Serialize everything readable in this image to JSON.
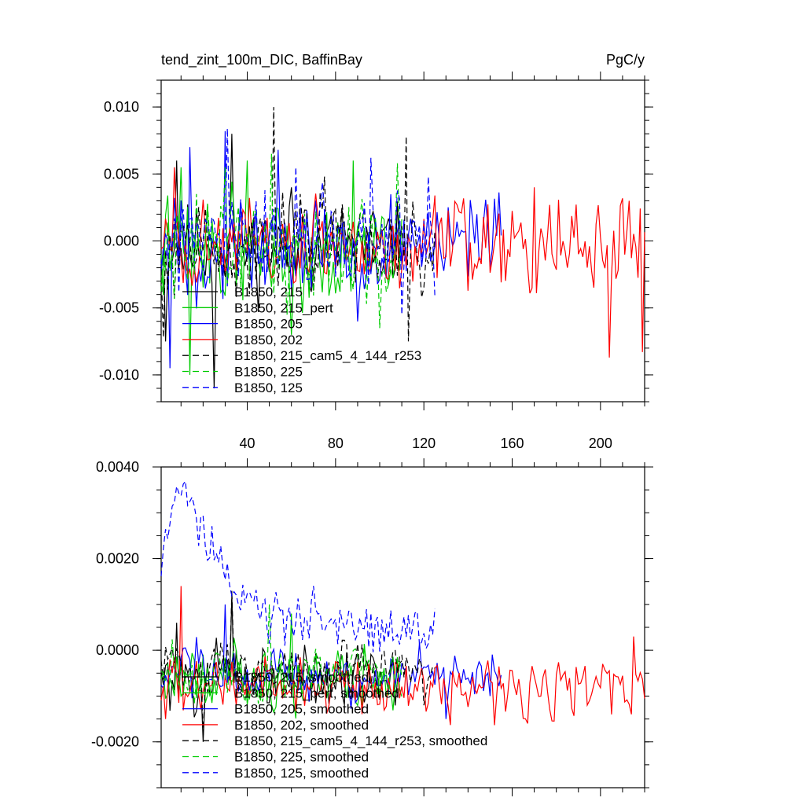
{
  "chart_data": [
    {
      "type": "line",
      "title": "tend_zint_100m_DIC, BaffinBay",
      "units": "PgC/y",
      "xlim": [
        1,
        220
      ],
      "ylim": [
        -0.012,
        0.012
      ],
      "xticks": [
        40,
        80,
        120,
        160,
        200
      ],
      "xtick_labels": [
        "40",
        "80",
        "120",
        "160",
        "200"
      ],
      "yticks": [
        0.01,
        0.005,
        0.0,
        -0.005,
        -0.01
      ],
      "ytick_labels": [
        "0.010",
        "0.005",
        "0.000",
        "-0.005",
        "-0.010"
      ],
      "legend_position": "bottom-left",
      "series": [
        {
          "name": "B1850, 215",
          "color": "#000000",
          "dash": "solid",
          "n": 110,
          "spread": 0.0022,
          "bias": -0.0005,
          "seed": 11,
          "spikes": [
            [
              3,
              -0.0075
            ],
            [
              8,
              0.006
            ],
            [
              25,
              -0.011
            ],
            [
              33,
              0.008
            ],
            [
              60,
              0.004
            ]
          ]
        },
        {
          "name": "B1850, 215_pert",
          "color": "#00cc00",
          "dash": "solid",
          "n": 110,
          "spread": 0.0025,
          "bias": -0.0006,
          "seed": 22,
          "spikes": [
            [
              10,
              0.0055
            ],
            [
              14,
              -0.01
            ],
            [
              40,
              0.006
            ],
            [
              60,
              -0.007
            ],
            [
              88,
              0.006
            ]
          ]
        },
        {
          "name": "B1850, 205",
          "color": "#0000ff",
          "dash": "solid",
          "n": 155,
          "spread": 0.0024,
          "bias": -0.0004,
          "seed": 33,
          "spikes": [
            [
              5,
              -0.0095
            ],
            [
              14,
              0.007
            ],
            [
              30,
              0.0082
            ],
            [
              54,
              0.0068
            ],
            [
              90,
              -0.006
            ]
          ]
        },
        {
          "name": "B1850, 202",
          "color": "#ff0000",
          "dash": "solid",
          "n": 220,
          "spread": 0.0022,
          "bias": -0.0005,
          "seed": 44,
          "spikes": [
            [
              7,
              0.0055
            ],
            [
              204,
              -0.0087
            ],
            [
              213,
              0.003
            ],
            [
              219,
              -0.0083
            ],
            [
              170,
              0.004
            ]
          ]
        },
        {
          "name": "B1850, 215_cam5_4_144_r253",
          "color": "#000000",
          "dash": "long",
          "n": 125,
          "spread": 0.0023,
          "bias": -0.0004,
          "seed": 55,
          "spikes": [
            [
              2,
              -0.0072
            ],
            [
              52,
              0.01
            ],
            [
              112,
              0.0078
            ],
            [
              113,
              -0.0075
            ],
            [
              75,
              0.0048
            ]
          ]
        },
        {
          "name": "B1850, 225",
          "color": "#00cc00",
          "dash": "long",
          "n": 110,
          "spread": 0.0024,
          "bias": -0.0003,
          "seed": 66,
          "spikes": [
            [
              51,
              0.0065
            ],
            [
              100,
              -0.0065
            ],
            [
              108,
              0.0058
            ],
            [
              30,
              0.0055
            ]
          ]
        },
        {
          "name": "B1850, 125",
          "color": "#0000ff",
          "dash": "long",
          "n": 125,
          "spread": 0.0024,
          "bias": -0.0002,
          "seed": 77,
          "spikes": [
            [
              31,
              0.0084
            ],
            [
              62,
              0.0055
            ],
            [
              110,
              -0.0055
            ],
            [
              122,
              0.0048
            ],
            [
              96,
              0.0062
            ]
          ]
        }
      ]
    },
    {
      "type": "line",
      "title": "",
      "xlim": [
        1,
        220
      ],
      "ylim": [
        -0.003,
        0.004
      ],
      "xticks": [
        40,
        80,
        120,
        160,
        200
      ],
      "xtick_labels": [],
      "yticks": [
        0.004,
        0.002,
        0.0,
        -0.002
      ],
      "ytick_labels": [
        "0.0040",
        "0.0020",
        "0.0000",
        "-0.0020"
      ],
      "legend_position": "bottom-left",
      "series": [
        {
          "name": "B1850, 215, smoothed",
          "color": "#000000",
          "dash": "solid",
          "n": 110,
          "spread": 0.00045,
          "bias": -0.0006,
          "seed": 101,
          "spikes": [
            [
              20,
              -0.002
            ],
            [
              33,
              0.0012
            ],
            [
              8,
              0.0006
            ]
          ]
        },
        {
          "name": "B1850, 215_pert, smoothed",
          "color": "#00cc00",
          "dash": "solid",
          "n": 110,
          "spread": 0.00045,
          "bias": -0.0006,
          "seed": 102,
          "spikes": [
            [
              10,
              -0.001
            ],
            [
              60,
              0.0008
            ],
            [
              92,
              -0.0012
            ]
          ]
        },
        {
          "name": "B1850, 205, smoothed",
          "color": "#0000ff",
          "dash": "solid",
          "n": 155,
          "spread": 0.0004,
          "bias": -0.0006,
          "seed": 103,
          "spikes": [
            [
              30,
              0.001
            ],
            [
              130,
              -0.0015
            ],
            [
              150,
              -0.001
            ]
          ]
        },
        {
          "name": "B1850, 202, smoothed",
          "color": "#ff0000",
          "dash": "solid",
          "n": 220,
          "spread": 0.0004,
          "bias": -0.0008,
          "seed": 104,
          "spikes": [
            [
              10,
              0.0014
            ],
            [
              205,
              -0.0014
            ],
            [
              215,
              0.0003
            ],
            [
              3,
              -0.0015
            ]
          ]
        },
        {
          "name": "B1850, 215_cam5_4_144_r253, smoothed",
          "color": "#000000",
          "dash": "long",
          "n": 125,
          "spread": 0.0004,
          "bias": -0.0004,
          "seed": 105,
          "spikes": [
            [
              33,
              0.0013
            ],
            [
              20,
              -0.0019
            ],
            [
              120,
              -0.0012
            ]
          ]
        },
        {
          "name": "B1850, 225, smoothed",
          "color": "#00cc00",
          "dash": "long",
          "n": 110,
          "spread": 0.0004,
          "bias": -0.0005,
          "seed": 106,
          "spikes": [
            [
              50,
              0.001
            ],
            [
              100,
              -0.001
            ]
          ]
        },
        {
          "name": "B1850, 125, smoothed",
          "color": "#0000ff",
          "dash": "long",
          "n": 125,
          "spread": 0.00035,
          "bias": 0.0002,
          "seed": 107,
          "profile": [
            [
              1,
              0.0015
            ],
            [
              6,
              0.003
            ],
            [
              12,
              0.0037
            ],
            [
              18,
              0.0026
            ],
            [
              24,
              0.0018
            ],
            [
              35,
              0.001
            ],
            [
              60,
              0.0004
            ],
            [
              90,
              0.0004
            ],
            [
              120,
              0.0001
            ],
            [
              125,
              0.0008
            ]
          ],
          "spikes": [
            [
              31,
              0.0019
            ],
            [
              70,
              0.0014
            ]
          ]
        }
      ]
    }
  ]
}
